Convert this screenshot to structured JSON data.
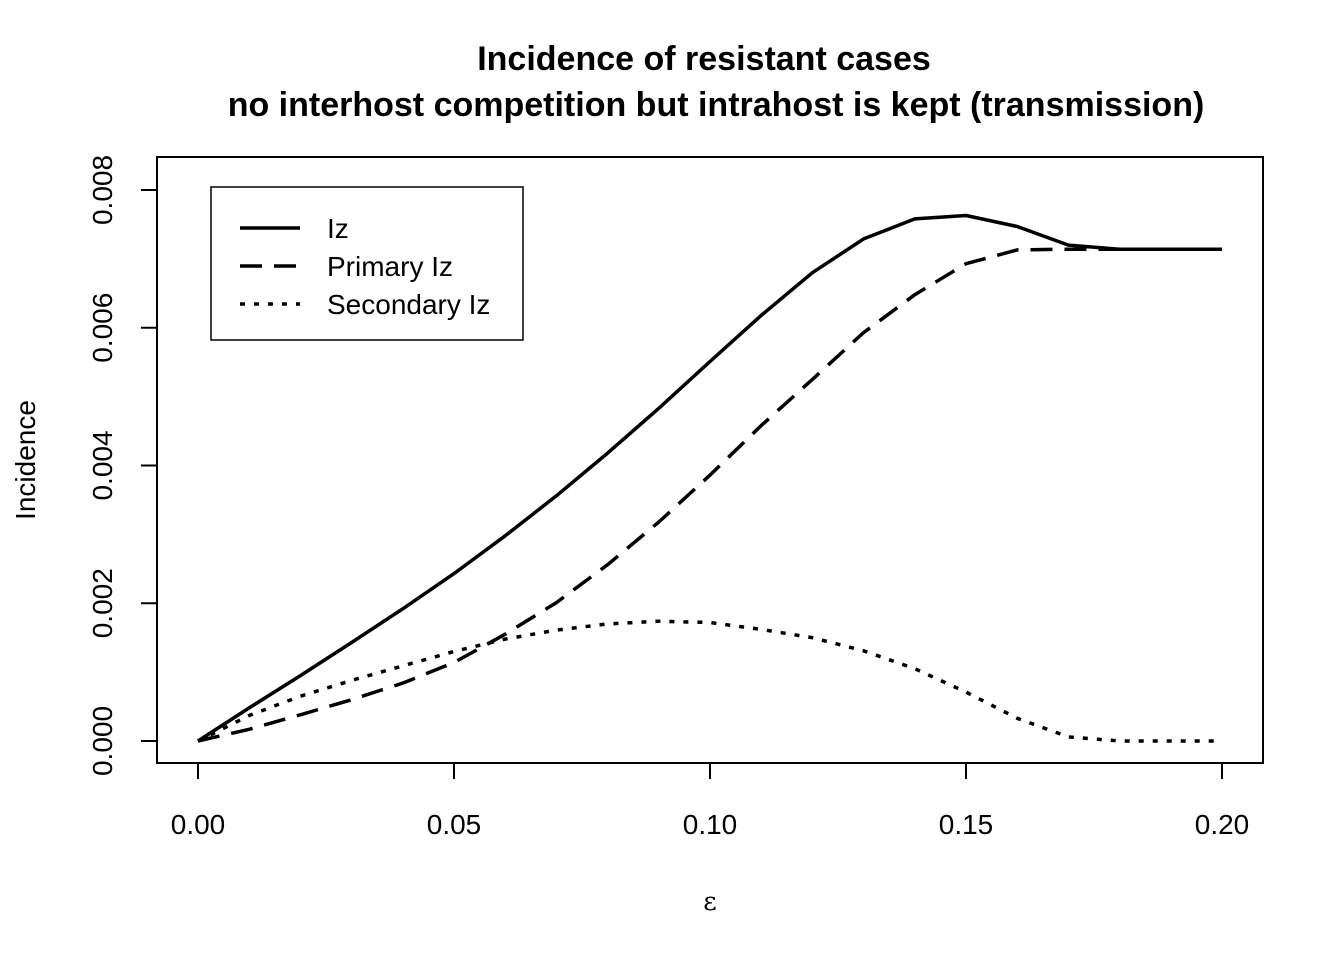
{
  "chart_data": {
    "type": "line",
    "title": "Incidence of resistant cases",
    "subtitle": "no interhost competition but intrahost is kept (transmission)",
    "xlabel": "ε",
    "ylabel": "Incidence",
    "xlim": [
      0.0,
      0.2
    ],
    "ylim": [
      0.0,
      0.008
    ],
    "x_ticks": [
      "0.00",
      "0.05",
      "0.10",
      "0.15",
      "0.20"
    ],
    "y_ticks": [
      "0.000",
      "0.002",
      "0.004",
      "0.006",
      "0.008"
    ],
    "grid": false,
    "legend_position": "top-left",
    "x": [
      0.0,
      0.01,
      0.02,
      0.03,
      0.04,
      0.05,
      0.06,
      0.07,
      0.08,
      0.09,
      0.1,
      0.11,
      0.12,
      0.13,
      0.14,
      0.15,
      0.16,
      0.17,
      0.18,
      0.19,
      0.2
    ],
    "series": [
      {
        "name": "Iz",
        "style": "solid",
        "values": [
          0.0,
          0.00048,
          0.00095,
          0.00143,
          0.00192,
          0.00243,
          0.00298,
          0.00356,
          0.00418,
          0.00483,
          0.00551,
          0.00618,
          0.0068,
          0.00729,
          0.00758,
          0.00763,
          0.00747,
          0.0072,
          0.00714,
          0.00714,
          0.00714
        ]
      },
      {
        "name": "Primary Iz",
        "style": "dashed",
        "values": [
          0.0,
          0.00017,
          0.00038,
          0.0006,
          0.00084,
          0.00114,
          0.00155,
          0.00201,
          0.00256,
          0.00318,
          0.00386,
          0.00458,
          0.00525,
          0.00593,
          0.00648,
          0.00693,
          0.00713,
          0.00714,
          0.00714,
          0.00714,
          0.00714
        ]
      },
      {
        "name": "Secondary Iz",
        "style": "dotted",
        "values": [
          0.0,
          0.00037,
          0.00065,
          0.00088,
          0.00109,
          0.0013,
          0.00148,
          0.00161,
          0.0017,
          0.00174,
          0.00172,
          0.00162,
          0.0015,
          0.00131,
          0.00105,
          0.00071,
          0.00033,
          6e-05,
          0.0,
          0.0,
          0.0
        ]
      }
    ]
  }
}
